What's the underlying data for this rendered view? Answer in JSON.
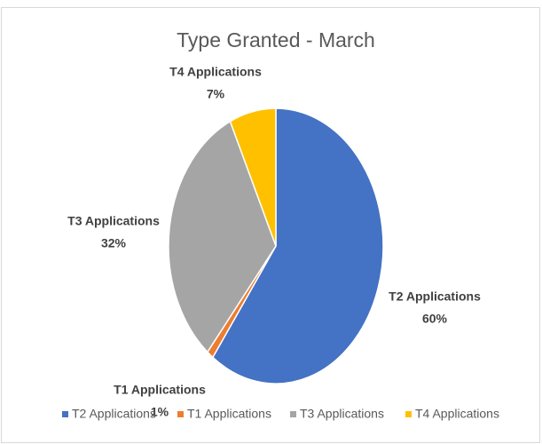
{
  "chart_data": {
    "type": "pie",
    "title": "Type Granted -  March",
    "categories": [
      "T2 Applications",
      "T1 Applications",
      "T3 Applications",
      "T4 Applications"
    ],
    "values": [
      60,
      1,
      32,
      7
    ],
    "value_labels": [
      "60%",
      "1%",
      "32%",
      "7%"
    ],
    "colors": [
      "#4472c4",
      "#ed7d31",
      "#a5a5a5",
      "#ffc000"
    ],
    "legend": "bottom"
  }
}
